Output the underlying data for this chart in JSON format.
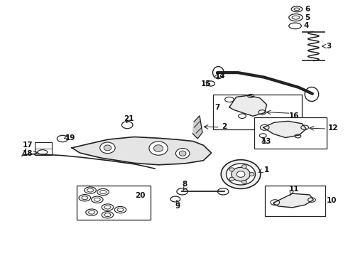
{
  "bg_color": "#ffffff",
  "fig_width": 4.9,
  "fig_height": 3.6,
  "dpi": 100,
  "line_color": "#222222",
  "label_fontsize": 7.5,
  "label_color": "#111111"
}
